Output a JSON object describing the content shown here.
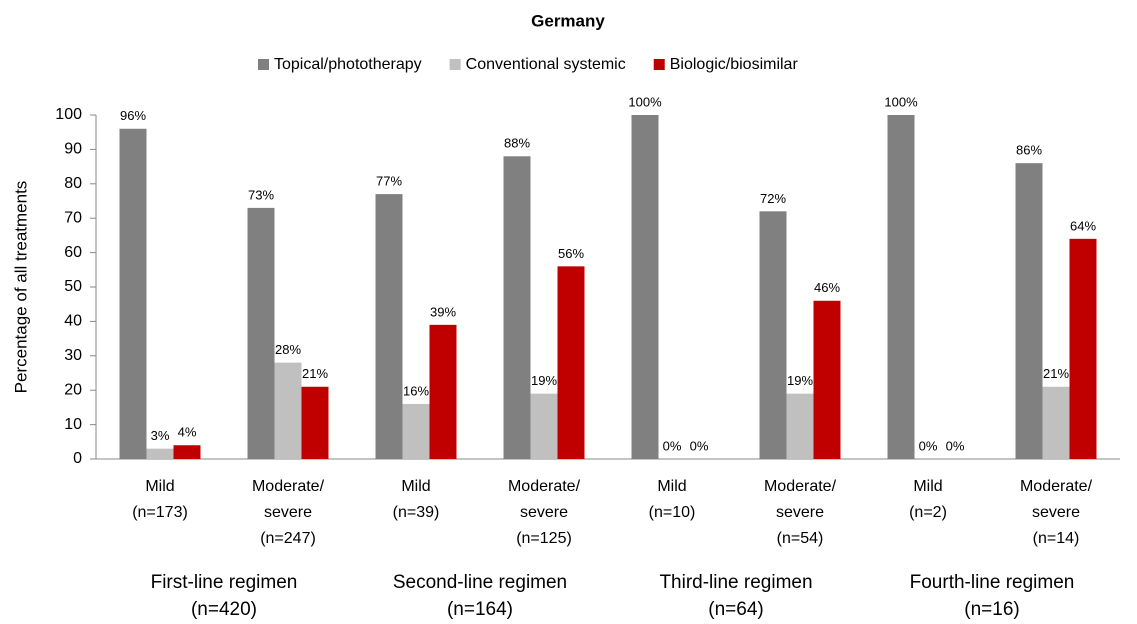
{
  "chart_data": {
    "type": "bar",
    "title": "Germany",
    "y_label": "Percentage of all treatments",
    "categories": [
      [
        "Mild",
        "(n=173)"
      ],
      [
        "Moderate/",
        "severe",
        "(n=247)"
      ],
      [
        "Mild",
        "(n=39)"
      ],
      [
        "Moderate/",
        "severe",
        "(n=125)"
      ],
      [
        "Mild",
        "(n=10)"
      ],
      [
        "Moderate/",
        "severe",
        "(n=54)"
      ],
      [
        "Mild",
        "(n=2)"
      ],
      [
        "Moderate/",
        "severe",
        "(n=14)"
      ]
    ],
    "groups": [
      [
        "First-line regimen",
        "(n=420)"
      ],
      [
        "Second-line regimen",
        "(n=164)"
      ],
      [
        "Third-line regimen",
        "(n=64)"
      ],
      [
        "Fourth-line regimen",
        "(n=16)"
      ]
    ],
    "series": [
      {
        "name": "Topical/phototherapy",
        "color": "#808080",
        "values": [
          96,
          73,
          77,
          88,
          100,
          72,
          100,
          86
        ],
        "value_labels": [
          "96%",
          "73%",
          "77%",
          "88%",
          "100%",
          "72%",
          "100%",
          "86%"
        ]
      },
      {
        "name": "Conventional systemic",
        "color": "#c0c0c0",
        "values": [
          3,
          28,
          16,
          19,
          0,
          19,
          0,
          21
        ],
        "value_labels": [
          "3%",
          "28%",
          "16%",
          "19%",
          "0%",
          "19%",
          "0%",
          "21%"
        ]
      },
      {
        "name": "Biologic/biosimilar",
        "color": "#c00000",
        "values": [
          4,
          21,
          39,
          56,
          0,
          46,
          0,
          64
        ],
        "value_labels": [
          "4%",
          "21%",
          "39%",
          "56%",
          "0%",
          "46%",
          "0%",
          "64%"
        ]
      }
    ],
    "ylim": [
      0,
      100
    ],
    "yticks": [
      0,
      10,
      20,
      30,
      40,
      50,
      60,
      70,
      80,
      90,
      100
    ],
    "grid": false,
    "legend": "top"
  }
}
